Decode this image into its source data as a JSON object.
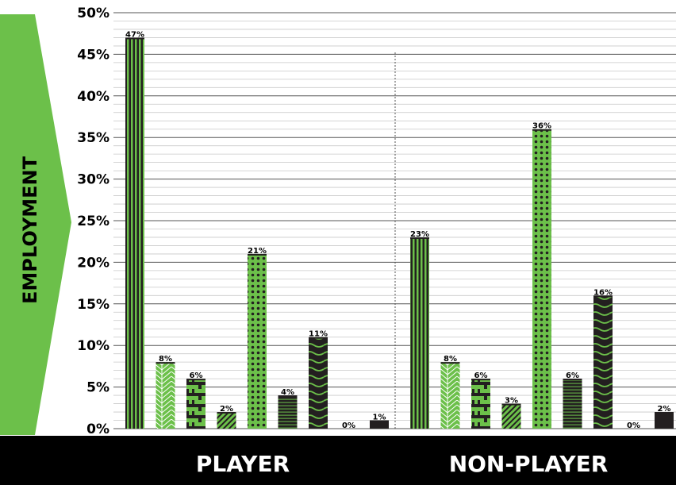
{
  "chart_data": {
    "type": "bar",
    "ylabel": "EMPLOYMENT",
    "ylim": [
      0,
      50
    ],
    "yticks": [
      "0%",
      "5%",
      "10%",
      "15%",
      "20%",
      "25%",
      "30%",
      "35%",
      "40%",
      "45%",
      "50%"
    ],
    "grid": true,
    "groups": [
      {
        "name": "PLAYER",
        "values": [
          47,
          8,
          6,
          2,
          21,
          4,
          11,
          0,
          1
        ],
        "labels": [
          "47%",
          "8%",
          "6%",
          "2%",
          "21%",
          "4%",
          "11%",
          "0%",
          "1%"
        ]
      },
      {
        "name": "NON-PLAYER",
        "values": [
          23,
          8,
          6,
          3,
          36,
          6,
          16,
          0,
          2
        ],
        "labels": [
          "23%",
          "8%",
          "6%",
          "3%",
          "36%",
          "6%",
          "16%",
          "0%",
          "2%"
        ]
      }
    ],
    "colors": {
      "green": "#6cc04a",
      "black": "#231f20",
      "arrow": "#6cc04a",
      "band": "#000000"
    }
  }
}
